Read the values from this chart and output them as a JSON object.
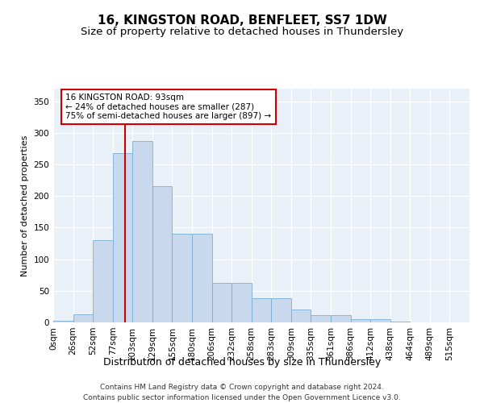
{
  "title1": "16, KINGSTON ROAD, BENFLEET, SS7 1DW",
  "title2": "Size of property relative to detached houses in Thundersley",
  "xlabel": "Distribution of detached houses by size in Thundersley",
  "ylabel": "Number of detached properties",
  "bar_values": [
    2,
    13,
    130,
    268,
    287,
    216,
    140,
    140,
    62,
    62,
    38,
    38,
    20,
    11,
    11,
    5,
    5,
    1,
    0,
    0,
    0
  ],
  "bar_labels": [
    "0sqm",
    "26sqm",
    "52sqm",
    "77sqm",
    "103sqm",
    "129sqm",
    "155sqm",
    "180sqm",
    "206sqm",
    "232sqm",
    "258sqm",
    "283sqm",
    "309sqm",
    "335sqm",
    "361sqm",
    "386sqm",
    "412sqm",
    "438sqm",
    "464sqm",
    "489sqm",
    "515sqm"
  ],
  "bar_color": "#c9d9ed",
  "bar_edge_color": "#7bafd4",
  "background_color": "#eaf0f8",
  "annotation_text": "16 KINGSTON ROAD: 93sqm\n← 24% of detached houses are smaller (287)\n75% of semi-detached houses are larger (897) →",
  "annotation_box_color": "#ffffff",
  "annotation_border_color": "#cc0000",
  "ylim": [
    0,
    370
  ],
  "yticks": [
    0,
    50,
    100,
    150,
    200,
    250,
    300,
    350
  ],
  "footer": "Contains HM Land Registry data © Crown copyright and database right 2024.\nContains public sector information licensed under the Open Government Licence v3.0.",
  "title1_fontsize": 11,
  "title2_fontsize": 9.5,
  "xlabel_fontsize": 9,
  "ylabel_fontsize": 8,
  "tick_fontsize": 7.5,
  "footer_fontsize": 6.5
}
